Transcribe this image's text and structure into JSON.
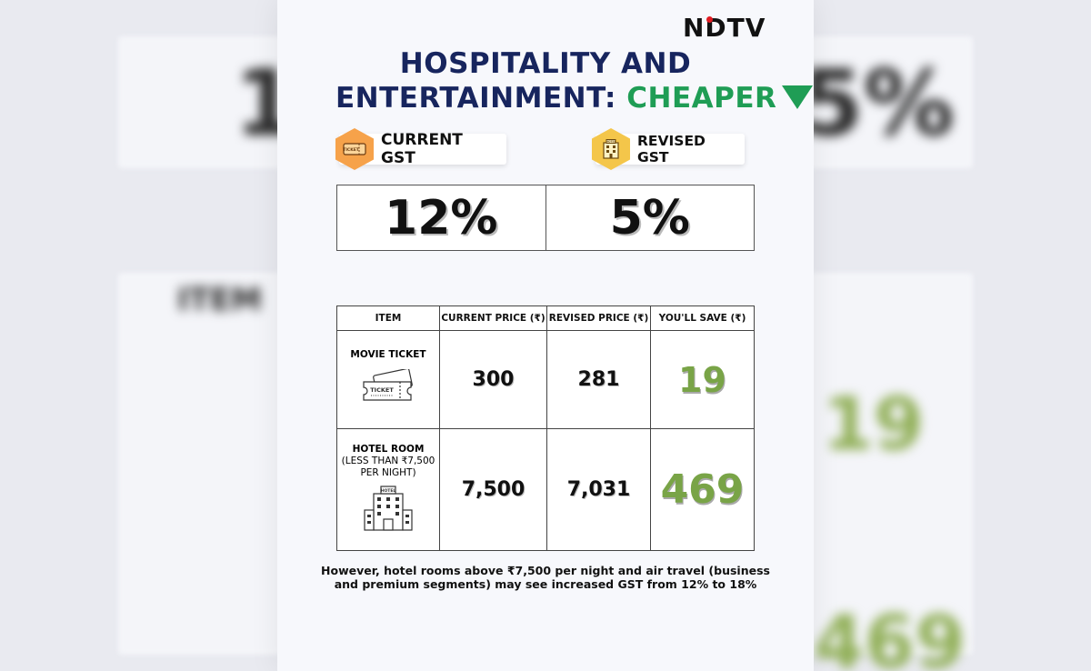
{
  "brand": {
    "logo_text": "NDTV"
  },
  "headline": {
    "line1": "HOSPITALITY AND",
    "line2_prefix": "ENTERTAINMENT: ",
    "line2_highlight": "CHEAPER"
  },
  "gst": {
    "current_label": "CURRENT GST",
    "current_value": "12%",
    "revised_label": "REVISED GST",
    "revised_value": "5%",
    "current_icon": "ticket-icon",
    "revised_icon": "hotel-icon"
  },
  "table": {
    "headers": [
      "ITEM",
      "CURRENT PRICE (₹)",
      "REVISED PRICE (₹)",
      "YOU'LL SAVE (₹)"
    ],
    "rows": [
      {
        "item": "MOVIE TICKET",
        "item_sub": "",
        "current": "300",
        "revised": "281",
        "save": "19",
        "icon": "ticket-icon"
      },
      {
        "item": "HOTEL ROOM",
        "item_sub": " (LESS THAN ₹7,500 PER NIGHT)",
        "current": "7,500",
        "revised": "7,031",
        "save": "469",
        "icon": "hotel-building-icon"
      }
    ]
  },
  "footnote": "However, hotel rooms above ₹7,500 per night and air travel (business and premium segments) may see increased GST from 12% to 18%",
  "colors": {
    "navy": "#17255e",
    "green": "#1f9d55",
    "save_green": "#79a447",
    "ndtv_red": "#e11b22"
  },
  "icons": {
    "ticket_text": "TICKET",
    "hotel_text": "HOTEL"
  }
}
